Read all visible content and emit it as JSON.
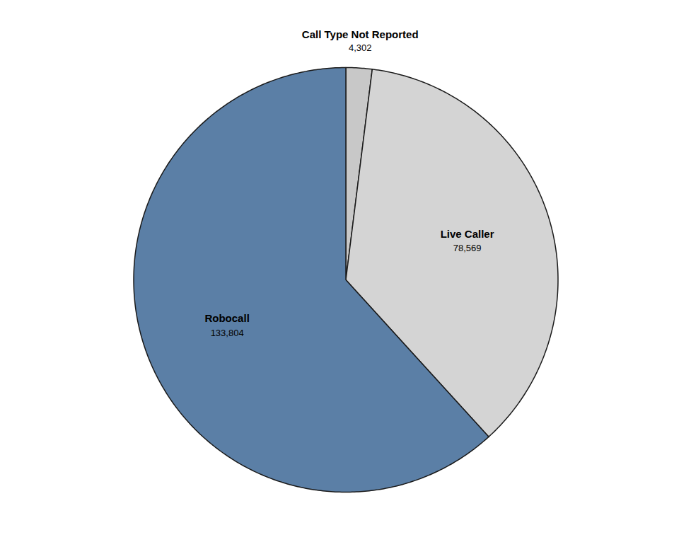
{
  "chart_data": {
    "type": "pie",
    "categories": [
      "Call Type Not Reported",
      "Live Caller",
      "Robocall"
    ],
    "values": [
      4302,
      78569,
      133804
    ],
    "value_labels": [
      "4,302",
      "78,569",
      "133,804"
    ],
    "colors": [
      "#c8c8c8",
      "#d4d4d4",
      "#5b7fa6"
    ],
    "data_labels": true
  }
}
